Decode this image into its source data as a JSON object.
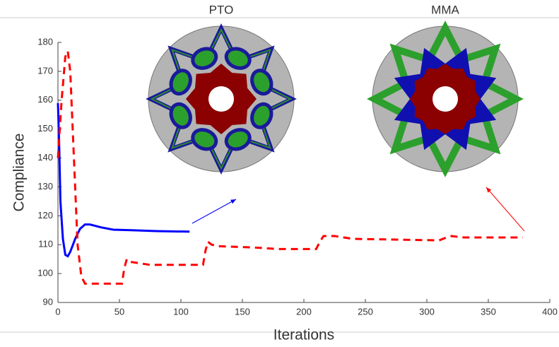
{
  "chart_data": {
    "type": "line",
    "x_label": "Iterations",
    "y_label": "Compliance",
    "xlim": [
      0,
      400
    ],
    "xticks": [
      0,
      50,
      100,
      150,
      200,
      250,
      300,
      350,
      400
    ],
    "ylim": [
      90,
      180
    ],
    "yticks": [
      90,
      100,
      110,
      120,
      130,
      140,
      150,
      160,
      170,
      180
    ],
    "insets": [
      {
        "label": "PTO",
        "color": "#0000ff"
      },
      {
        "label": "MMA",
        "color": "#ff0000"
      }
    ],
    "series": [
      {
        "name": "PTO",
        "color": "#0000ff",
        "dash": false,
        "x": [
          0,
          1,
          2,
          4,
          6,
          8,
          10,
          14,
          18,
          22,
          26,
          35,
          45,
          60,
          80,
          107
        ],
        "values": [
          159,
          145,
          125,
          112,
          106.5,
          106,
          107.5,
          112,
          115.5,
          117,
          117,
          116,
          115.2,
          115,
          114.7,
          114.5
        ]
      },
      {
        "name": "MMA",
        "color": "#ff0000",
        "dash": true,
        "x": [
          0,
          3,
          6,
          8,
          10,
          13,
          16,
          19,
          22,
          30,
          52,
          54,
          56,
          60,
          75,
          118,
          120,
          122,
          125,
          130,
          160,
          180,
          210,
          213,
          216,
          225,
          240,
          310,
          316,
          320,
          330,
          378
        ],
        "values": [
          140,
          160,
          175,
          177,
          170,
          140,
          110,
          99,
          96.5,
          96.5,
          96.5,
          102,
          105,
          104,
          103,
          103,
          108,
          111,
          110,
          109.5,
          109,
          108.5,
          108.5,
          111,
          113,
          113,
          112,
          111.5,
          112.5,
          113,
          112.5,
          112.5
        ]
      }
    ]
  }
}
